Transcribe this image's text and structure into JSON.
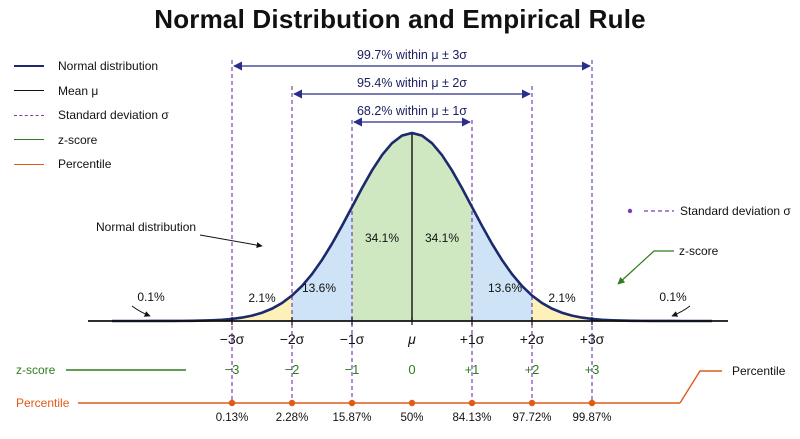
{
  "title": "Normal Distribution and Empirical Rule",
  "legend": [
    {
      "label": "Normal distribution",
      "color": "#1c2a6b",
      "style": "solid"
    },
    {
      "label": "Mean μ",
      "color": "#111111",
      "style": "solid"
    },
    {
      "label": "Standard deviation σ",
      "color": "#7b3fb5",
      "style": "dashed"
    },
    {
      "label": "z-score",
      "color": "#2e7d1e",
      "style": "solid"
    },
    {
      "label": "Percentile",
      "color": "#e05a1a",
      "style": "solid"
    }
  ],
  "spans": [
    {
      "label": "99.7% within μ ± 3σ",
      "from": -3,
      "to": 3
    },
    {
      "label": "95.4% within μ ± 2σ",
      "from": -2,
      "to": 2
    },
    {
      "label": "68.2% within μ ± 1σ",
      "from": -1,
      "to": 1
    }
  ],
  "regions": [
    {
      "from": -4,
      "to": -3,
      "label": "0.1%",
      "color": "#f6c8c8"
    },
    {
      "from": -3,
      "to": -2,
      "label": "2.1%",
      "color": "#fdf0b8"
    },
    {
      "from": -2,
      "to": -1,
      "label": "13.6%",
      "color": "#cfe3f7"
    },
    {
      "from": -1,
      "to": 0,
      "label": "34.1%",
      "color": "#cfe8c2"
    },
    {
      "from": 0,
      "to": 1,
      "label": "34.1%",
      "color": "#cfe8c2"
    },
    {
      "from": 1,
      "to": 2,
      "label": "13.6%",
      "color": "#cfe3f7"
    },
    {
      "from": 2,
      "to": 3,
      "label": "2.1%",
      "color": "#fdf0b8"
    },
    {
      "from": 3,
      "to": 4,
      "label": "0.1%",
      "color": "#f6c8c8"
    }
  ],
  "ticks": [
    {
      "z": -3,
      "sigma_label": "−3σ",
      "zscore": "−3",
      "percentile": "0.13%"
    },
    {
      "z": -2,
      "sigma_label": "−2σ",
      "zscore": "−2",
      "percentile": "2.28%"
    },
    {
      "z": -1,
      "sigma_label": "−1σ",
      "zscore": "−1",
      "percentile": "15.87%"
    },
    {
      "z": 0,
      "sigma_label": "μ",
      "zscore": "0",
      "percentile": "50%"
    },
    {
      "z": 1,
      "sigma_label": "+1σ",
      "zscore": "+1",
      "percentile": "84.13%"
    },
    {
      "z": 2,
      "sigma_label": "+2σ",
      "zscore": "+2",
      "percentile": "97.72%"
    },
    {
      "z": 3,
      "sigma_label": "+3σ",
      "zscore": "+3",
      "percentile": "99.87%"
    }
  ],
  "rows": {
    "zscore_label": "z-score",
    "percentile_label": "Percentile"
  },
  "callouts": {
    "normal_distribution": "Normal distribution",
    "standard_deviation": "Standard deviation σ",
    "zscore": "z-score",
    "percentile": "Percentile"
  },
  "colors": {
    "curve": "#1c2a6b",
    "mean": "#111111",
    "sigma": "#7b3fb5",
    "zscore": "#2e7d1e",
    "percentile": "#e05a1a",
    "span_arrow": "#2a2e8a"
  }
}
